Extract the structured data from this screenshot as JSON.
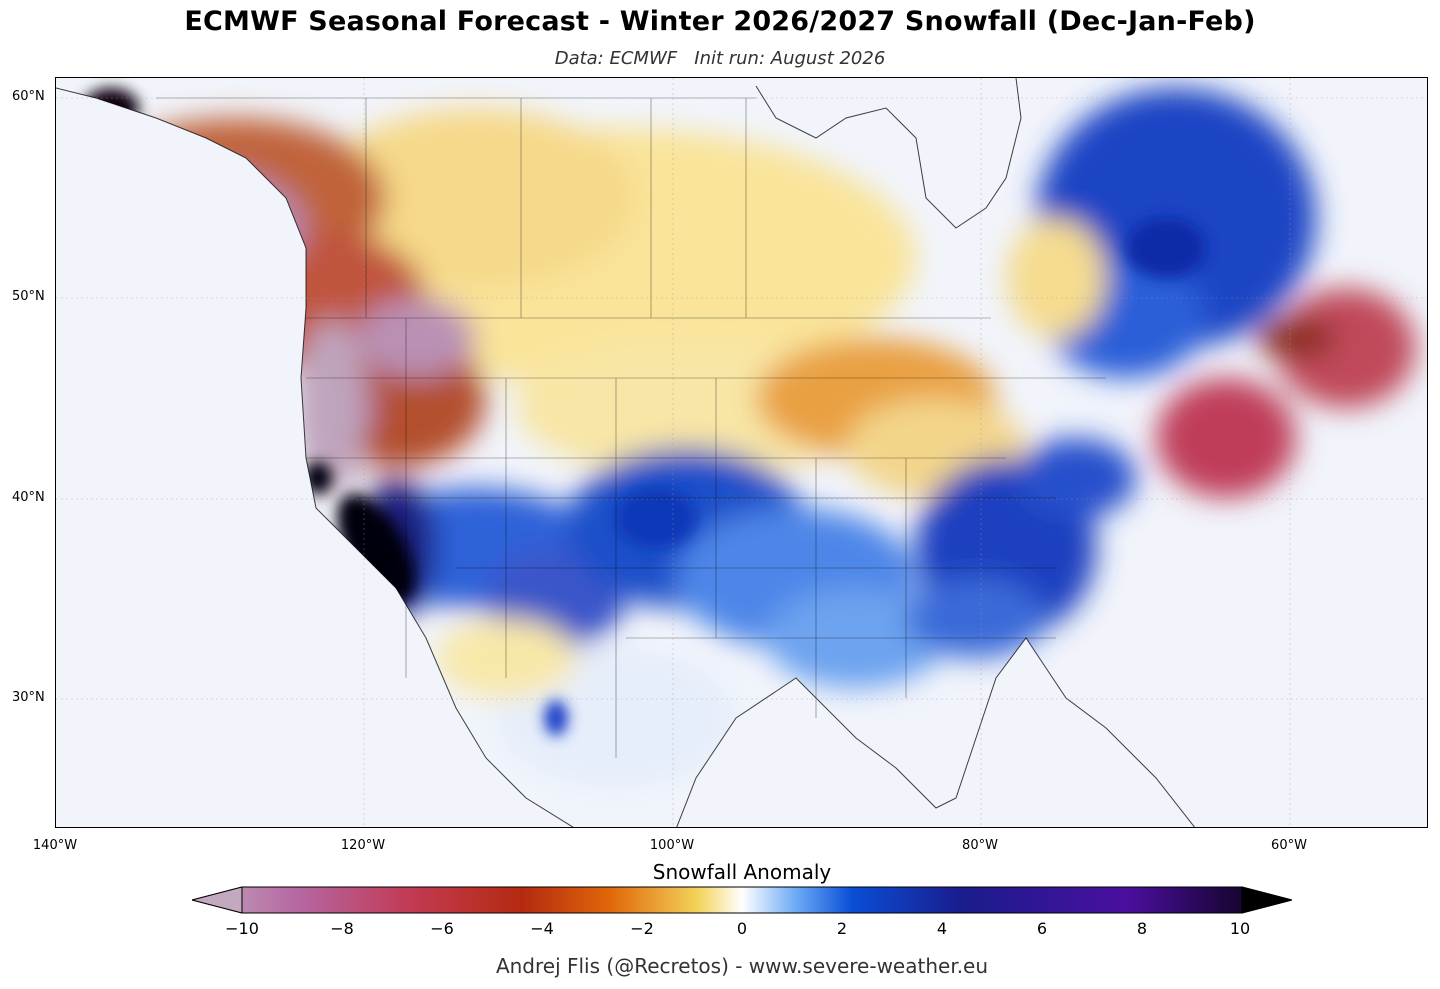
{
  "header": {
    "title": "ECMWF Seasonal Forecast - Winter 2026/2027 Snowfall (Dec-Jan-Feb)",
    "subtitle": "Data: ECMWF   Init run: August 2026"
  },
  "map": {
    "region": "North America",
    "lat_labels": [
      "60°N",
      "50°N",
      "40°N",
      "30°N"
    ],
    "lon_labels": [
      "140°W",
      "120°W",
      "100°W",
      "80°W",
      "60°W"
    ],
    "background_color": "#ffffff",
    "coastline_color": "#000000"
  },
  "colorbar": {
    "title": "Snowfall Anomaly",
    "ticks": [
      "−10",
      "−8",
      "−6",
      "−4",
      "−2",
      "0",
      "2",
      "4",
      "6",
      "8",
      "10"
    ],
    "colors": [
      "#c3a9bf",
      "#b565a0",
      "#c23a52",
      "#b42a10",
      "#e0670a",
      "#f3d35a",
      "#ffffff",
      "#6aa8f5",
      "#0a4ed6",
      "#1a1c8c",
      "#4a0f9e",
      "#000000"
    ]
  },
  "footer": {
    "credit": "Andrej Flis (@Recretos) - www.severe-weather.eu"
  }
}
